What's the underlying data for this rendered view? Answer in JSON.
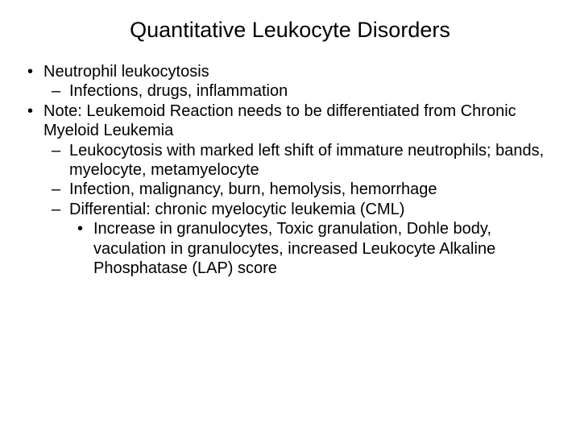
{
  "slide": {
    "title": "Quantitative Leukocyte Disorders",
    "background_color": "#ffffff",
    "text_color": "#000000",
    "title_fontsize": 27,
    "body_fontsize": 20,
    "font_family": "Arial",
    "bullets": {
      "l1a": "Neutrophil leukocytosis",
      "l2a": "Infections, drugs, inflammation",
      "l1b": "Note: Leukemoid Reaction needs to be differentiated from Chronic Myeloid Leukemia",
      "l2b": "Leukocytosis with marked left shift of immature neutrophils; bands, myelocyte, metamyelocyte",
      "l2c": "Infection, malignancy, burn, hemolysis, hemorrhage",
      "l2d": "Differential: chronic myelocytic leukemia (CML)",
      "l3a": "Increase in granulocytes, Toxic granulation, Dohle body, vaculation in granulocytes, increased Leukocyte Alkaline Phosphatase (LAP) score"
    }
  }
}
